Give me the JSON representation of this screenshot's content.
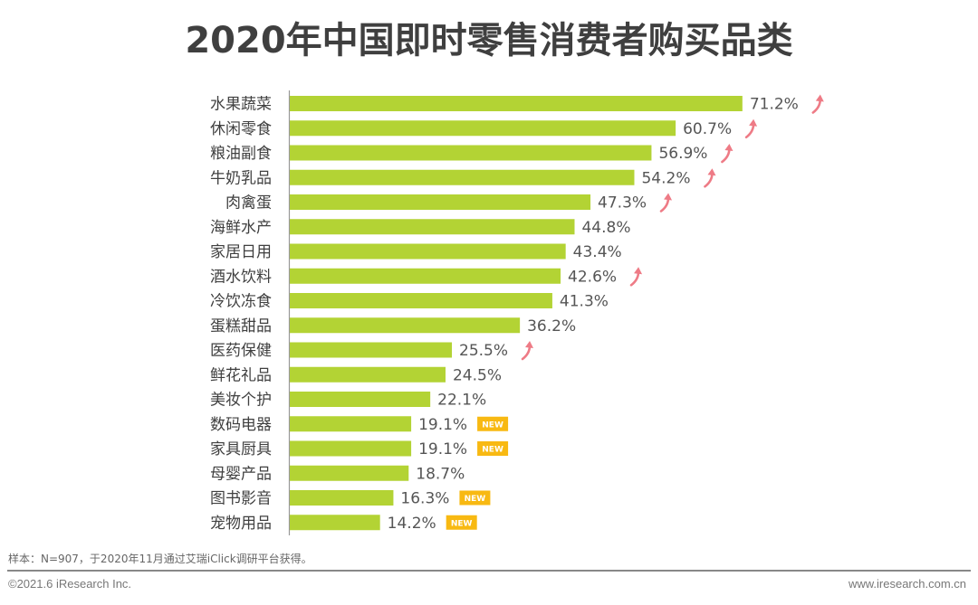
{
  "title": "2020年中国即时零售消费者购买品类",
  "chart_data": {
    "type": "bar",
    "orientation": "horizontal",
    "title": "2020年中国即时零售消费者购买品类",
    "xlabel": "",
    "ylabel": "",
    "unit": "%",
    "xlim": [
      0,
      75
    ],
    "grid": false,
    "categories": [
      "水果蔬菜",
      "休闲零食",
      "粮油副食",
      "牛奶乳品",
      "肉禽蛋",
      "海鲜水产",
      "家居日用",
      "酒水饮料",
      "冷饮冻食",
      "蛋糕甜品",
      "医药保健",
      "鲜花礼品",
      "美妆个护",
      "数码电器",
      "家具厨具",
      "母婴产品",
      "图书影音",
      "宠物用品"
    ],
    "values": [
      71.2,
      60.7,
      56.9,
      54.2,
      47.3,
      44.8,
      43.4,
      42.6,
      41.3,
      36.2,
      25.5,
      24.5,
      22.1,
      19.1,
      19.1,
      18.7,
      16.3,
      14.2
    ],
    "labels": [
      "71.2%",
      "60.7%",
      "56.9%",
      "54.2%",
      "47.3%",
      "44.8%",
      "43.4%",
      "42.6%",
      "41.3%",
      "36.2%",
      "25.5%",
      "24.5%",
      "22.1%",
      "19.1%",
      "19.1%",
      "18.7%",
      "16.3%",
      "14.2%"
    ],
    "markers": [
      "up",
      "up",
      "up",
      "up",
      "up",
      "",
      "",
      "up",
      "",
      "",
      "up",
      "",
      "",
      "new",
      "new",
      "",
      "new",
      "new"
    ],
    "new_badge_text": "NEW",
    "colors": {
      "bar": "#b3d334",
      "up_arrow": "#ee7b86",
      "new_badge": "#f8b912",
      "axis": "#999999"
    }
  },
  "footer": {
    "note": "样本：N=907，于2020年11月通过艾瑞iClick调研平台获得。",
    "copyright": "©2021.6 iResearch Inc.",
    "website": "www.iresearch.com.cn"
  }
}
